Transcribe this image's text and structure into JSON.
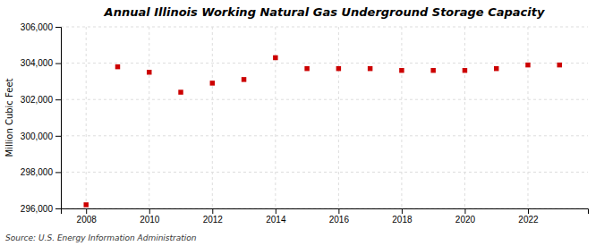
{
  "chart_data": {
    "type": "scatter",
    "title": "Annual Illinois Working Natural Gas Underground Storage Capacity",
    "ylabel": "Million Cubic Feet",
    "annotations": [
      "Source: U.S. Energy Information Administration"
    ],
    "x": [
      2008,
      2009,
      2010,
      2011,
      2012,
      2013,
      2014,
      2015,
      2016,
      2017,
      2018,
      2019,
      2020,
      2021,
      2022,
      2023
    ],
    "values": [
      296200,
      303800,
      303500,
      302400,
      302900,
      303100,
      304300,
      303700,
      303700,
      303700,
      303600,
      303600,
      303600,
      303700,
      303900,
      303900
    ],
    "color": "#cc0000",
    "marker": "square",
    "xlim": [
      2007.2,
      2023.9
    ],
    "xticks": [
      2008,
      2010,
      2012,
      2014,
      2016,
      2018,
      2020,
      2022
    ],
    "ylim": [
      296000,
      306000
    ],
    "yticks": [
      {
        "value": 296000,
        "label": "296,000"
      },
      {
        "value": 298000,
        "label": "298,000"
      },
      {
        "value": 300000,
        "label": "300,000"
      },
      {
        "value": 302000,
        "label": "302,000"
      },
      {
        "value": 304000,
        "label": "304,000"
      },
      {
        "value": 306000,
        "label": "306,000"
      }
    ],
    "grid": true
  }
}
